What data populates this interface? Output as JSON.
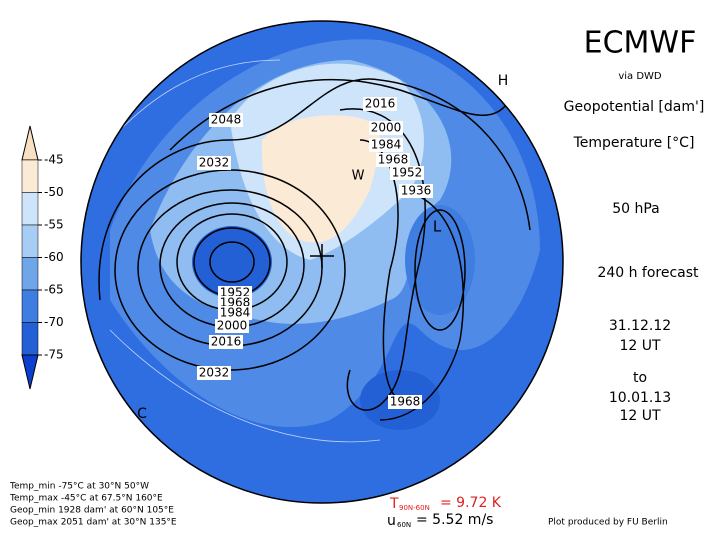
{
  "header": {
    "title": "ECMWF",
    "source": "via DWD",
    "field1": "Geopotential [dam']",
    "field2": "Temperature [°C]",
    "level": "50 hPa",
    "forecast": "240 h forecast",
    "start_date": "31.12.12",
    "start_time": "12 UT",
    "to": "to",
    "valid_date": "10.01.13",
    "valid_time": "12 UT"
  },
  "colorbar": {
    "ticks": [
      -45,
      -50,
      -55,
      -60,
      -65,
      -70,
      -75
    ],
    "colors": [
      "#f7e0c4",
      "#fbead6",
      "#cde4fa",
      "#a8cdf4",
      "#6fa6ea",
      "#3f7de0",
      "#2360d6",
      "#0b3fcf"
    ]
  },
  "map": {
    "contour_labels": [
      2048,
      2032,
      2016,
      2000,
      1984,
      1968,
      1952,
      1936,
      1952,
      1968,
      1984,
      2000,
      2016,
      2032,
      1968
    ],
    "markers": [
      "H",
      "L",
      "W",
      "C"
    ]
  },
  "stats": [
    "Temp_min -75°C at 30°N 50°W",
    "Temp_max -45°C at 67.5°N 160°E",
    "Geop_min 1928 dam' at 60°N 105°E",
    "Geop_max 2051 dam' at 30°N 135°E"
  ],
  "indices": {
    "t_symbol": "T",
    "t_sub": "90N-60N",
    "t_value": "= 9.72 K",
    "u_symbol": "u",
    "u_sub": "60N",
    "u_value": "= 5.52 m/s"
  },
  "credit": "Plot produced by FU Berlin"
}
